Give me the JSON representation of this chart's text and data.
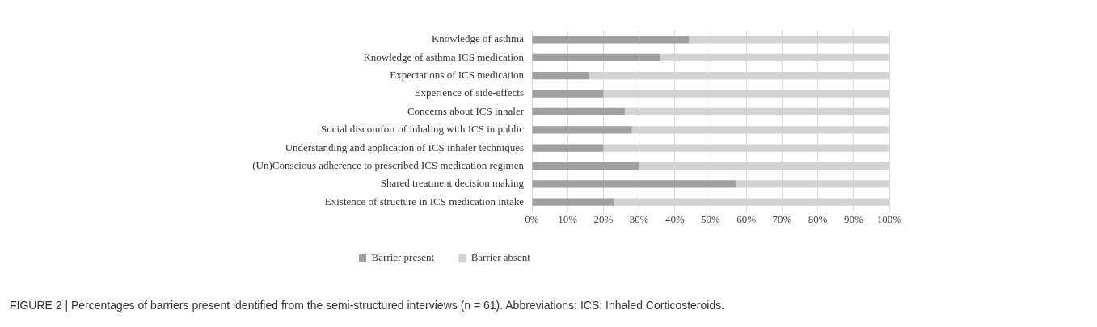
{
  "chart_data": {
    "type": "bar",
    "orientation": "horizontal",
    "stacked": true,
    "categories": [
      "Knowledge of asthma",
      "Knowledge of asthma ICS medication",
      "Expectations of ICS medication",
      "Experience of side-effects",
      "Concerns about ICS inhaler",
      "Social discomfort of inhaling with ICS in public",
      "Understanding and application of ICS inhaler techniques",
      "(Un)Conscious adherence to prescribed ICS medication regimen",
      "Shared treatment decision making",
      "Existence of structure in ICS medication intake"
    ],
    "series": [
      {
        "name": "Barrier present",
        "color": "#a0a0a0",
        "values": [
          44,
          36,
          16,
          20,
          26,
          28,
          20,
          30,
          57,
          23
        ]
      },
      {
        "name": "Barrier absent",
        "color": "#d3d3d3",
        "values": [
          56,
          64,
          84,
          80,
          74,
          72,
          80,
          70,
          43,
          77
        ]
      }
    ],
    "xlim": [
      0,
      100
    ],
    "xticks": [
      {
        "value": 0,
        "label": "0%"
      },
      {
        "value": 10,
        "label": "10%"
      },
      {
        "value": 20,
        "label": "20%"
      },
      {
        "value": 30,
        "label": "30%"
      },
      {
        "value": 40,
        "label": "40%"
      },
      {
        "value": 50,
        "label": "50%"
      },
      {
        "value": 60,
        "label": "60%"
      },
      {
        "value": 70,
        "label": "70%"
      },
      {
        "value": 80,
        "label": "80%"
      },
      {
        "value": 90,
        "label": "90%"
      },
      {
        "value": 100,
        "label": "100%"
      }
    ],
    "grid": "x",
    "legend": "bottom",
    "annotations": [
      "FIGURE 2 | Percentages of barriers present identified from the semi-structured interviews (n = 61). Abbreviations: ICS: Inhaled Corticosteroids."
    ]
  }
}
